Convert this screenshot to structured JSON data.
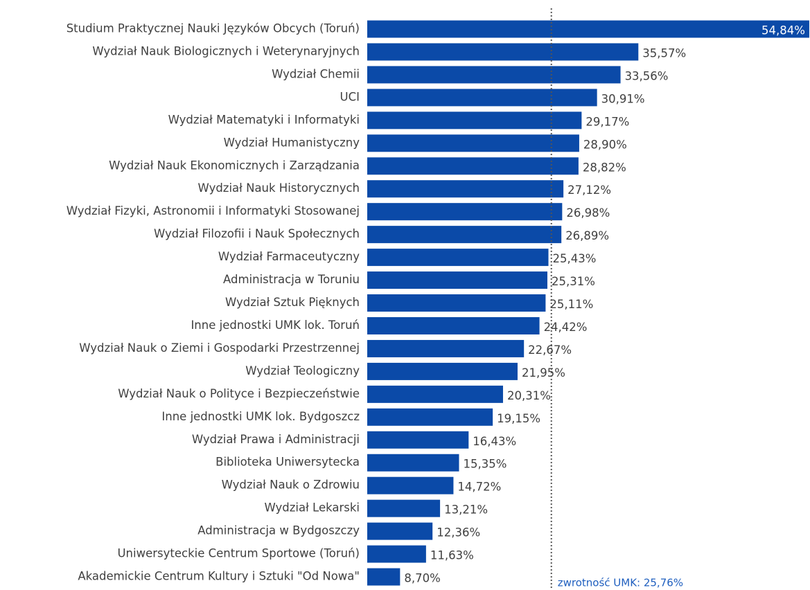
{
  "chart_data": {
    "type": "hbar",
    "categories": [
      "Studium Praktycznej Nauki Języków Obcych (Toruń)",
      "Wydział Nauk Biologicznych i Weterynaryjnych",
      "Wydział Chemii",
      "UCI",
      "Wydział Matematyki i Informatyki",
      "Wydział Humanistyczny",
      "Wydział Nauk Ekonomicznych i Zarządzania",
      "Wydział Nauk Historycznych",
      "Wydział Fizyki, Astronomii i Informatyki Stosowanej",
      "Wydział Filozofii i Nauk Społecznych",
      "Wydział Farmaceutyczny",
      "Administracja w Toruniu",
      "Wydział Sztuk Pięknych",
      "Inne jednostki UMK lok. Toruń",
      "Wydział Nauk o Ziemi i Gospodarki Przestrzennej",
      "Wydział Teologiczny",
      "Wydział Nauk o Polityce i Bezpieczeństwie",
      "Inne jednostki UMK lok. Bydgoszcz",
      "Wydział Prawa i Administracji",
      "Biblioteka Uniwersytecka",
      "Wydział Nauk o Zdrowiu",
      "Wydział Lekarski",
      "Administracja w Bydgoszczy",
      "Uniwersyteckie Centrum Sportowe (Toruń)",
      "Akademickie Centrum Kultury i Sztuki \"Od Nowa\""
    ],
    "values": [
      54.84,
      35.57,
      33.56,
      30.91,
      29.17,
      28.9,
      28.82,
      27.12,
      26.98,
      26.89,
      25.43,
      25.31,
      25.11,
      24.42,
      22.67,
      21.95,
      20.31,
      19.15,
      16.43,
      15.35,
      14.72,
      13.21,
      12.36,
      11.63,
      8.7
    ],
    "value_labels": [
      "54,84%",
      "35,57%",
      "33,56%",
      "30,91%",
      "29,17%",
      "28,90%",
      "28,82%",
      "27,12%",
      "26,98%",
      "26,89%",
      "25,43%",
      "25,31%",
      "25,11%",
      "24,42%",
      "22,67%",
      "21,95%",
      "20,31%",
      "19,15%",
      "16,43%",
      "15,35%",
      "14,72%",
      "13,21%",
      "12,36%",
      "11,63%",
      "8,70%"
    ],
    "color": "#0b4aa8",
    "xlim": [
      5,
      55
    ],
    "reference_line": {
      "value": 25.76,
      "label": "zwrotność UMK: 25,76%"
    }
  }
}
